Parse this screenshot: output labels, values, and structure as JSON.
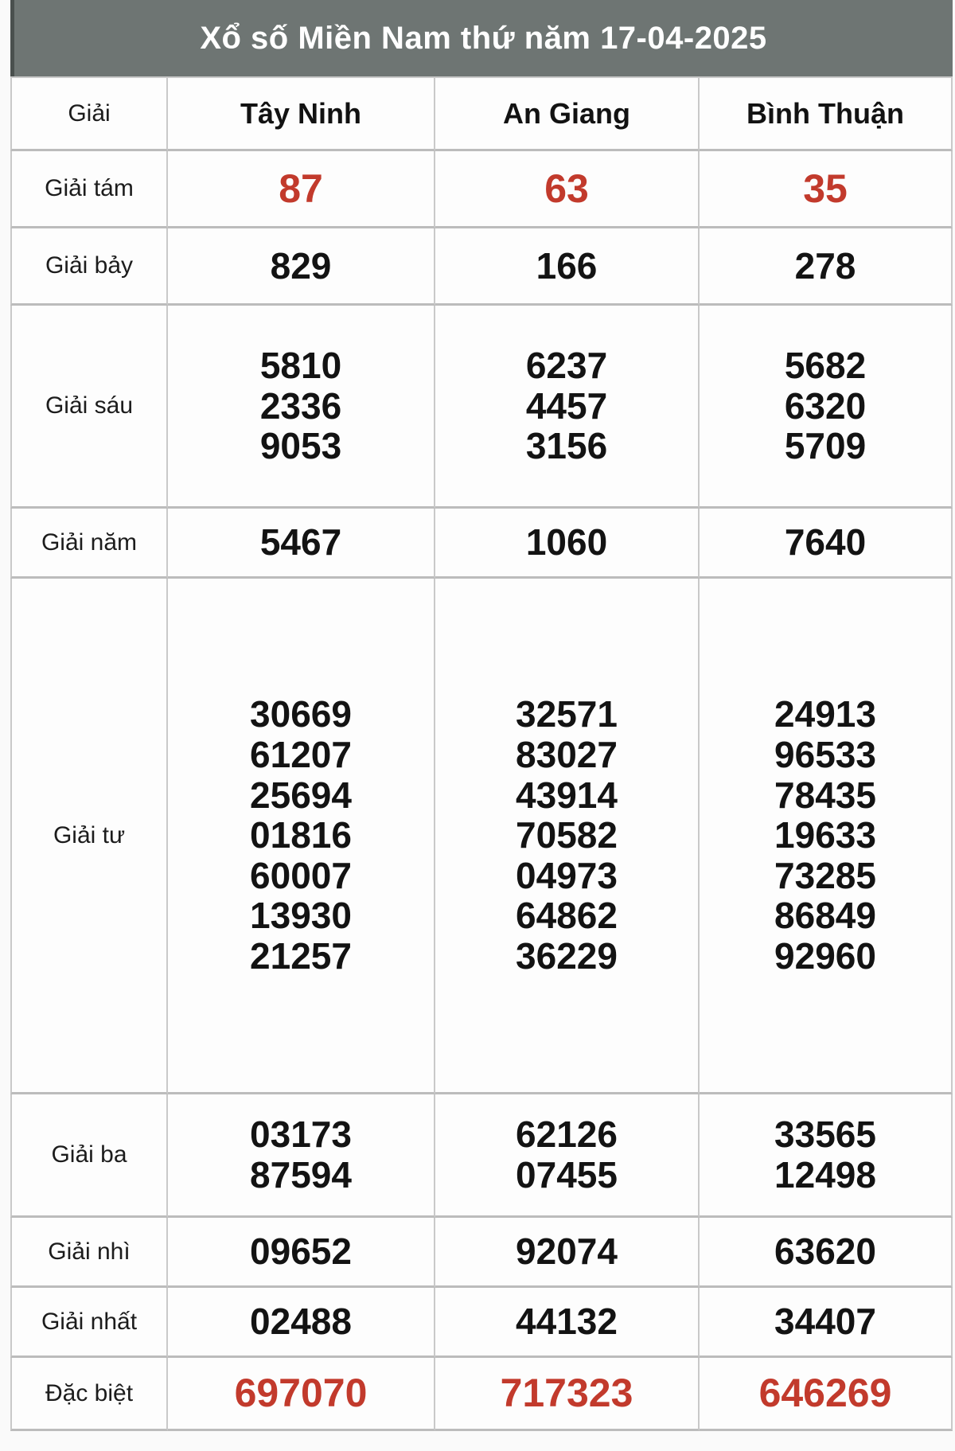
{
  "header": {
    "title": "Xổ số Miền Nam thứ năm 17-04-2025"
  },
  "colors": {
    "accent_red": "#C23A2C",
    "band_bg": "#6E7573",
    "band_text": "#FFFFFF"
  },
  "table": {
    "columns": [
      "Giải",
      "Tây Ninh",
      "An Giang",
      "Bình Thuận"
    ],
    "rows": [
      {
        "label": "Giải tám",
        "highlight": true,
        "values": [
          [
            "87"
          ],
          [
            "63"
          ],
          [
            "35"
          ]
        ]
      },
      {
        "label": "Giải bảy",
        "highlight": false,
        "values": [
          [
            "829"
          ],
          [
            "166"
          ],
          [
            "278"
          ]
        ]
      },
      {
        "label": "Giải sáu",
        "highlight": false,
        "values": [
          [
            "5810",
            "2336",
            "9053"
          ],
          [
            "6237",
            "4457",
            "3156"
          ],
          [
            "5682",
            "6320",
            "5709"
          ]
        ]
      },
      {
        "label": "Giải năm",
        "highlight": false,
        "values": [
          [
            "5467"
          ],
          [
            "1060"
          ],
          [
            "7640"
          ]
        ]
      },
      {
        "label": "Giải tư",
        "highlight": false,
        "values": [
          [
            "30669",
            "61207",
            "25694",
            "01816",
            "60007",
            "13930",
            "21257"
          ],
          [
            "32571",
            "83027",
            "43914",
            "70582",
            "04973",
            "64862",
            "36229"
          ],
          [
            "24913",
            "96533",
            "78435",
            "19633",
            "73285",
            "86849",
            "92960"
          ]
        ]
      },
      {
        "label": "Giải ba",
        "highlight": false,
        "values": [
          [
            "03173",
            "87594"
          ],
          [
            "62126",
            "07455"
          ],
          [
            "33565",
            "12498"
          ]
        ]
      },
      {
        "label": "Giải nhì",
        "highlight": false,
        "values": [
          [
            "09652"
          ],
          [
            "92074"
          ],
          [
            "63620"
          ]
        ]
      },
      {
        "label": "Giải nhất",
        "highlight": false,
        "values": [
          [
            "02488"
          ],
          [
            "44132"
          ],
          [
            "34407"
          ]
        ]
      },
      {
        "label": "Đặc biệt",
        "highlight": true,
        "values": [
          [
            "697070"
          ],
          [
            "717323"
          ],
          [
            "646269"
          ]
        ]
      }
    ]
  }
}
